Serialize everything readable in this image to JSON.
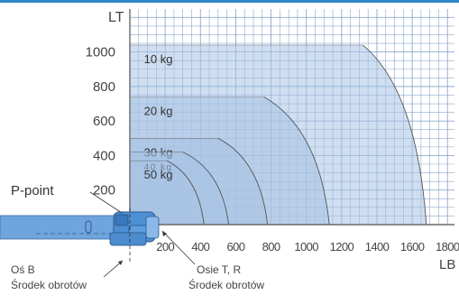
{
  "chart_data": {
    "type": "area",
    "xlabel": "LB",
    "ylabel": "LT",
    "xlim": [
      0,
      1800
    ],
    "ylim": [
      0,
      1100
    ],
    "x_ticks": [
      "200",
      "400",
      "600",
      "800",
      "1000",
      "1200",
      "1400",
      "1600",
      "1800"
    ],
    "y_ticks": [
      "200",
      "400",
      "600",
      "800",
      "1000"
    ],
    "grid": true,
    "series": [
      {
        "name": "10 kg",
        "max_lt": 1040,
        "flat_until_lb": 1320,
        "max_lb": 1680
      },
      {
        "name": "20 kg",
        "max_lt": 740,
        "flat_until_lb": 760,
        "max_lb": 1130
      },
      {
        "name": "30 kg",
        "max_lt": 500,
        "flat_until_lb": 500,
        "max_lb": 780
      },
      {
        "name": "40 kg",
        "max_lt": 420,
        "flat_until_lb": 300,
        "max_lb": 560
      },
      {
        "name": "50 kg",
        "max_lt": 370,
        "flat_until_lb": 210,
        "max_lb": 420
      }
    ],
    "annotations": {
      "p_point": "P-point",
      "axis_b": "Oś B",
      "axis_b_sub": "Środek obrotów",
      "axis_tr": "Osie T, R",
      "axis_tr_sub": "Środek obrotów"
    },
    "colors": {
      "fill": "#a8c2e3",
      "fill_opacity": 0.55,
      "grid": "#7f9fc8",
      "axis": "#6a6a6a",
      "curve": "#555555",
      "robot": "#4d8fd3",
      "accent": "#2f86c8"
    }
  }
}
